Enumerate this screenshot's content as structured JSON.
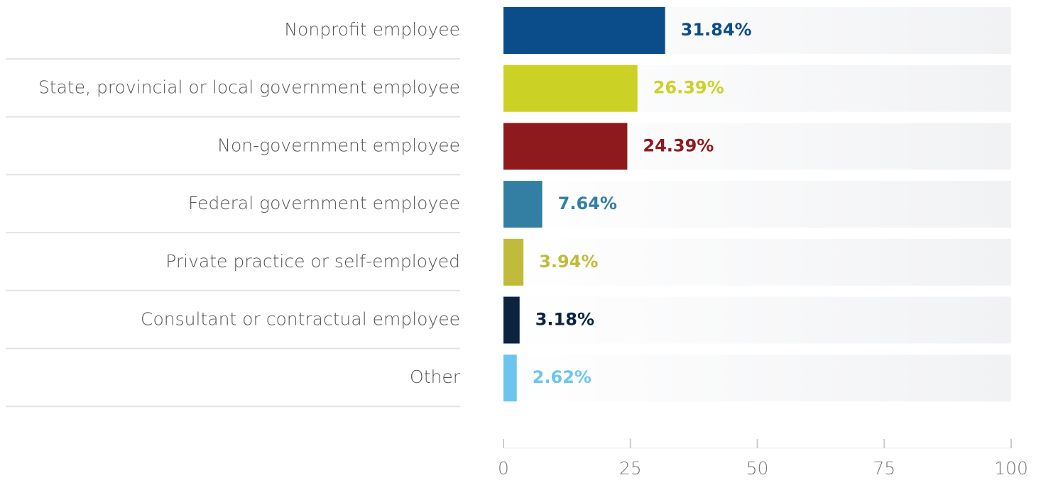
{
  "chart_data": {
    "type": "barh",
    "categories": [
      "Nonprofit employee",
      "State, provincial or local government employee",
      "Non-government employee",
      "Federal government employee",
      "Private practice or self-employed",
      "Consultant or contractual employee",
      "Other"
    ],
    "values": [
      31.84,
      26.39,
      24.39,
      7.64,
      3.94,
      3.18,
      2.62
    ],
    "value_labels": [
      "31.84%",
      "26.39%",
      "24.39%",
      "7.64%",
      "3.94%",
      "3.18%",
      "2.62%"
    ],
    "colors": [
      "#0b4d8a",
      "#ccd126",
      "#8f1a1e",
      "#327fa3",
      "#c1bb3c",
      "#0c2340",
      "#6cc5ee"
    ],
    "xlim": [
      0,
      100
    ],
    "xticks": [
      0,
      25,
      50,
      75,
      100
    ]
  }
}
